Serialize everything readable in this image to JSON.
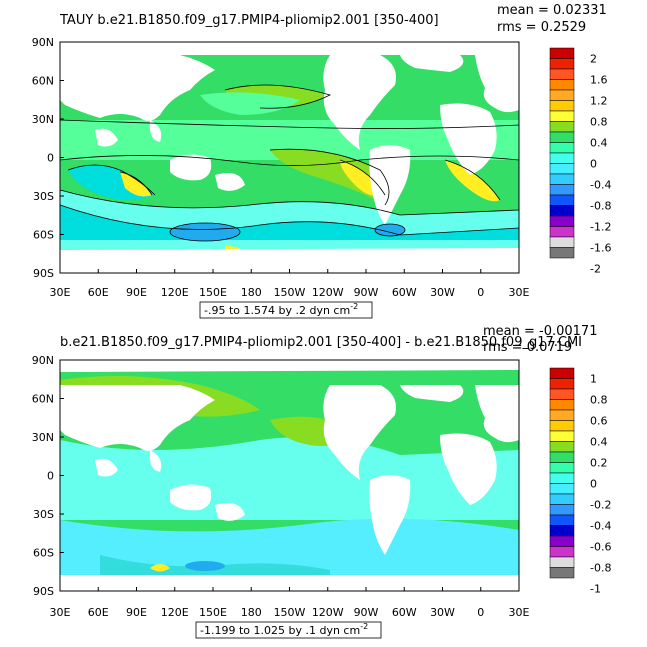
{
  "panels": [
    {
      "title": "TAUY b.e21.B1850.f09_g17.PMIP4-pliomip2.001 [350-400]",
      "mean_text": "mean = 0.02331",
      "rms_text": "rms = 0.2529",
      "range_text": "-.95 to 1.574 by .2 dyn cm",
      "range_sup": "-2",
      "colorbar_labels": [
        "2",
        "1.6",
        "1.2",
        "0.8",
        "0.4",
        "0",
        "-0.4",
        "-0.8",
        "-1.2",
        "-1.6",
        "-2"
      ],
      "colors": {
        "ocean_main": "#33dd66",
        "ocean_alt": "#55ff99",
        "cyan_band": "#00dddd",
        "cyan_light": "#66ffee",
        "deep_blue": "#22aaee",
        "yellow_patch": "#ffee22",
        "land": "#ffffff"
      }
    },
    {
      "title": "b.e21.B1850.f09_g17.PMIP4-pliomip2.001 [350-400] - b.e21.B1850.f09_g17.CMI",
      "mean_text": "mean = -0.00171",
      "rms_text": "rms = 0.0719",
      "range_text": "-1.199 to 1.025 by .1 dyn cm",
      "range_sup": "-2",
      "colorbar_labels": [
        "1",
        "0.8",
        "0.6",
        "0.4",
        "0.2",
        "0",
        "-0.2",
        "-0.4",
        "-0.6",
        "-0.8",
        "-1"
      ],
      "colors": {
        "ocean_main": "#33dd66",
        "ocean_alt": "#66ffee",
        "cyan_band": "#55eeff",
        "cyan_light": "#33dddd",
        "deep_blue": "#22aaee",
        "yellow_patch": "#ffee22",
        "land": "#ffffff"
      }
    }
  ],
  "axes": {
    "x_ticks": [
      "30E",
      "60E",
      "90E",
      "120E",
      "150E",
      "180",
      "150W",
      "120W",
      "90W",
      "60W",
      "30W",
      "0",
      "30E"
    ],
    "y_ticks": [
      "90N",
      "60N",
      "30N",
      "0",
      "30S",
      "60S",
      "90S"
    ]
  },
  "colorbar_colors": [
    "#cc0000",
    "#ee2200",
    "#ff5522",
    "#ff8800",
    "#ffaa22",
    "#ffcc00",
    "#ffff33",
    "#88dd22",
    "#33dd66",
    "#33ffaa",
    "#44ffee",
    "#44eeff",
    "#33ccff",
    "#3399ff",
    "#1155ff",
    "#0000cc",
    "#8800cc",
    "#cc33cc",
    "#dddddd",
    "#777777"
  ],
  "chart_data": [
    {
      "type": "heatmap",
      "title": "TAUY b.e21.B1850.f09_g17.PMIP4-pliomip2.001 [350-400]",
      "xlabel": "",
      "ylabel": "",
      "x_ticks": [
        "30E",
        "60E",
        "90E",
        "120E",
        "150E",
        "180",
        "150W",
        "120W",
        "90W",
        "60W",
        "30W",
        "0",
        "30E"
      ],
      "y_ticks": [
        "90N",
        "60N",
        "30N",
        "0",
        "30S",
        "60S",
        "90S"
      ],
      "colorbar_levels": [
        2,
        1.6,
        1.2,
        0.8,
        0.4,
        0,
        -0.4,
        -0.8,
        -1.2,
        -1.6,
        -2
      ],
      "mean": 0.02331,
      "rms": 0.2529,
      "range_min": -0.95,
      "range_max": 1.574,
      "contour_interval": 0.2,
      "units": "dyn cm-2"
    },
    {
      "type": "heatmap",
      "title": "b.e21.B1850.f09_g17.PMIP4-pliomip2.001 [350-400] - b.e21.B1850.f09_g17.CMI",
      "xlabel": "",
      "ylabel": "",
      "x_ticks": [
        "30E",
        "60E",
        "90E",
        "120E",
        "150E",
        "180",
        "150W",
        "120W",
        "90W",
        "60W",
        "30W",
        "0",
        "30E"
      ],
      "y_ticks": [
        "90N",
        "60N",
        "30N",
        "0",
        "30S",
        "60S",
        "90S"
      ],
      "colorbar_levels": [
        1,
        0.8,
        0.6,
        0.4,
        0.2,
        0,
        -0.2,
        -0.4,
        -0.6,
        -0.8,
        -1
      ],
      "mean": -0.00171,
      "rms": 0.0719,
      "range_min": -1.199,
      "range_max": 1.025,
      "contour_interval": 0.1,
      "units": "dyn cm-2"
    }
  ]
}
